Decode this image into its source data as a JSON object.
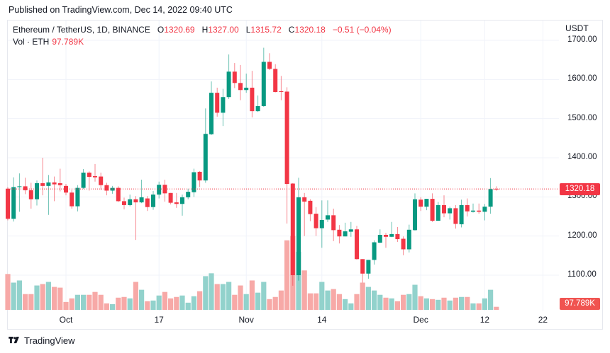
{
  "header": {
    "published": "Published on TradingView.com, Dec 14, 2022 09:40 UTC"
  },
  "legend": {
    "symbol": "Ethereum / TetherUS, 1D, BINANCE",
    "o_label": "O",
    "o_value": "1320.69",
    "h_label": "H",
    "h_value": "1327.00",
    "l_label": "L",
    "l_value": "1315.72",
    "c_label": "C",
    "c_value": "1320.18",
    "change": "−0.51 (−0.04%)",
    "vol_label": "Vol · ETH",
    "vol_value": "97.789K"
  },
  "axis": {
    "currency": "USDT",
    "price_labels": [
      "1700.00",
      "1600.00",
      "1500.00",
      "1400.00",
      "1300.00",
      "1200.00",
      "1100.00"
    ],
    "time_labels": [
      "Oct",
      "17",
      "Nov",
      "14",
      "Dec",
      "12",
      "22"
    ],
    "last_price_tag": "1320.18",
    "last_volume_tag": "97.789K"
  },
  "footer": {
    "brand": "TradingView"
  },
  "colors": {
    "up": "#089981",
    "down": "#f23645",
    "up_vol": "#92d2cc",
    "down_vol": "#f7a9a7",
    "last_line": "#f23645"
  },
  "chart_data": {
    "type": "candlestick",
    "symbol": "ETHUSDT",
    "interval": "1D",
    "start_date": "2022-09-21",
    "end_date": "2022-12-14",
    "ylim": [
      1050,
      1720
    ],
    "price_ticks": [
      1100,
      1200,
      1300,
      1400,
      1500,
      1600,
      1700
    ],
    "time_ticks": [
      {
        "label": "Oct",
        "index": 10
      },
      {
        "label": "17",
        "index": 26
      },
      {
        "label": "Nov",
        "index": 41
      },
      {
        "label": "14",
        "index": 54
      },
      {
        "label": "Dec",
        "index": 71
      },
      {
        "label": "12",
        "index": 82
      },
      {
        "label": "22",
        "index": 92
      }
    ],
    "last_price": 1320.18,
    "volume_unit": "K ETH",
    "columns": [
      "open",
      "high",
      "low",
      "close",
      "volume_k"
    ],
    "candles": [
      [
        1321,
        1325,
        1240,
        1244,
        1150
      ],
      [
        1244,
        1350,
        1237,
        1325,
        874
      ],
      [
        1325,
        1360,
        1262,
        1327,
        943
      ],
      [
        1327,
        1349,
        1307,
        1317,
        506
      ],
      [
        1317,
        1336,
        1270,
        1294,
        506
      ],
      [
        1294,
        1342,
        1278,
        1335,
        782
      ],
      [
        1335,
        1400,
        1304,
        1328,
        828
      ],
      [
        1328,
        1356,
        1254,
        1337,
        897
      ],
      [
        1337,
        1352,
        1289,
        1332,
        736
      ],
      [
        1335,
        1372,
        1314,
        1330,
        713
      ],
      [
        1328,
        1333,
        1304,
        1311,
        253
      ],
      [
        1311,
        1318,
        1270,
        1276,
        368
      ],
      [
        1276,
        1330,
        1263,
        1323,
        483
      ],
      [
        1323,
        1371,
        1320,
        1362,
        483
      ],
      [
        1362,
        1365,
        1316,
        1351,
        483
      ],
      [
        1353,
        1384,
        1339,
        1350,
        575
      ],
      [
        1352,
        1362,
        1318,
        1330,
        483
      ],
      [
        1330,
        1336,
        1304,
        1316,
        207
      ],
      [
        1316,
        1328,
        1308,
        1323,
        184
      ],
      [
        1323,
        1327,
        1287,
        1289,
        391
      ],
      [
        1289,
        1298,
        1268,
        1279,
        414
      ],
      [
        1279,
        1306,
        1276,
        1294,
        368
      ],
      [
        1294,
        1302,
        1190,
        1286,
        897
      ],
      [
        1286,
        1344,
        1284,
        1299,
        644
      ],
      [
        1296,
        1302,
        1264,
        1274,
        276
      ],
      [
        1274,
        1315,
        1267,
        1306,
        299
      ],
      [
        1306,
        1339,
        1296,
        1331,
        460
      ],
      [
        1331,
        1344,
        1288,
        1309,
        575
      ],
      [
        1310,
        1310,
        1281,
        1285,
        368
      ],
      [
        1286,
        1310,
        1272,
        1282,
        414
      ],
      [
        1282,
        1306,
        1252,
        1299,
        460
      ],
      [
        1299,
        1321,
        1294,
        1313,
        230
      ],
      [
        1312,
        1372,
        1300,
        1363,
        437
      ],
      [
        1364,
        1366,
        1325,
        1342,
        598
      ],
      [
        1342,
        1526,
        1336,
        1461,
        1081
      ],
      [
        1460,
        1595,
        1458,
        1566,
        1173
      ],
      [
        1566,
        1579,
        1505,
        1515,
        828
      ],
      [
        1515,
        1576,
        1481,
        1555,
        828
      ],
      [
        1555,
        1664,
        1550,
        1620,
        897
      ],
      [
        1620,
        1642,
        1578,
        1591,
        483
      ],
      [
        1591,
        1637,
        1547,
        1573,
        782
      ],
      [
        1573,
        1615,
        1566,
        1579,
        506
      ],
      [
        1579,
        1622,
        1503,
        1519,
        943
      ],
      [
        1519,
        1559,
        1517,
        1532,
        552
      ],
      [
        1532,
        1681,
        1530,
        1645,
        897
      ],
      [
        1645,
        1667,
        1624,
        1627,
        345
      ],
      [
        1627,
        1639,
        1567,
        1568,
        414
      ],
      [
        1570,
        1609,
        1547,
        1568,
        621
      ],
      [
        1569,
        1580,
        1232,
        1333,
        2231
      ],
      [
        1334,
        1335,
        1073,
        1100,
        2369
      ],
      [
        1100,
        1349,
        1086,
        1299,
        1863
      ],
      [
        1299,
        1310,
        1200,
        1288,
        1265
      ],
      [
        1290,
        1294,
        1238,
        1256,
        529
      ],
      [
        1257,
        1274,
        1200,
        1220,
        529
      ],
      [
        1220,
        1291,
        1170,
        1241,
        897
      ],
      [
        1242,
        1291,
        1236,
        1253,
        621
      ],
      [
        1253,
        1270,
        1187,
        1215,
        667
      ],
      [
        1216,
        1228,
        1181,
        1199,
        506
      ],
      [
        1199,
        1234,
        1199,
        1212,
        345
      ],
      [
        1211,
        1236,
        1198,
        1217,
        207
      ],
      [
        1217,
        1226,
        1140,
        1141,
        506
      ],
      [
        1141,
        1141,
        1081,
        1104,
        874
      ],
      [
        1104,
        1139,
        1091,
        1139,
        736
      ],
      [
        1139,
        1189,
        1127,
        1184,
        621
      ],
      [
        1183,
        1217,
        1182,
        1203,
        483
      ],
      [
        1203,
        1208,
        1170,
        1198,
        391
      ],
      [
        1198,
        1236,
        1197,
        1205,
        368
      ],
      [
        1205,
        1223,
        1185,
        1192,
        276
      ],
      [
        1193,
        1199,
        1151,
        1166,
        483
      ],
      [
        1166,
        1229,
        1158,
        1216,
        506
      ],
      [
        1215,
        1309,
        1214,
        1294,
        805
      ],
      [
        1293,
        1299,
        1264,
        1275,
        437
      ],
      [
        1275,
        1295,
        1266,
        1295,
        368
      ],
      [
        1295,
        1309,
        1236,
        1239,
        345
      ],
      [
        1239,
        1287,
        1239,
        1279,
        322
      ],
      [
        1279,
        1304,
        1248,
        1258,
        391
      ],
      [
        1258,
        1275,
        1242,
        1271,
        299
      ],
      [
        1271,
        1279,
        1219,
        1231,
        391
      ],
      [
        1230,
        1293,
        1222,
        1279,
        414
      ],
      [
        1279,
        1296,
        1250,
        1263,
        414
      ],
      [
        1262,
        1283,
        1260,
        1265,
        207
      ],
      [
        1265,
        1283,
        1257,
        1262,
        207
      ],
      [
        1262,
        1282,
        1240,
        1275,
        368
      ],
      [
        1275,
        1348,
        1257,
        1320,
        644
      ],
      [
        1320.69,
        1327,
        1315.72,
        1320.18,
        97.789
      ]
    ]
  }
}
